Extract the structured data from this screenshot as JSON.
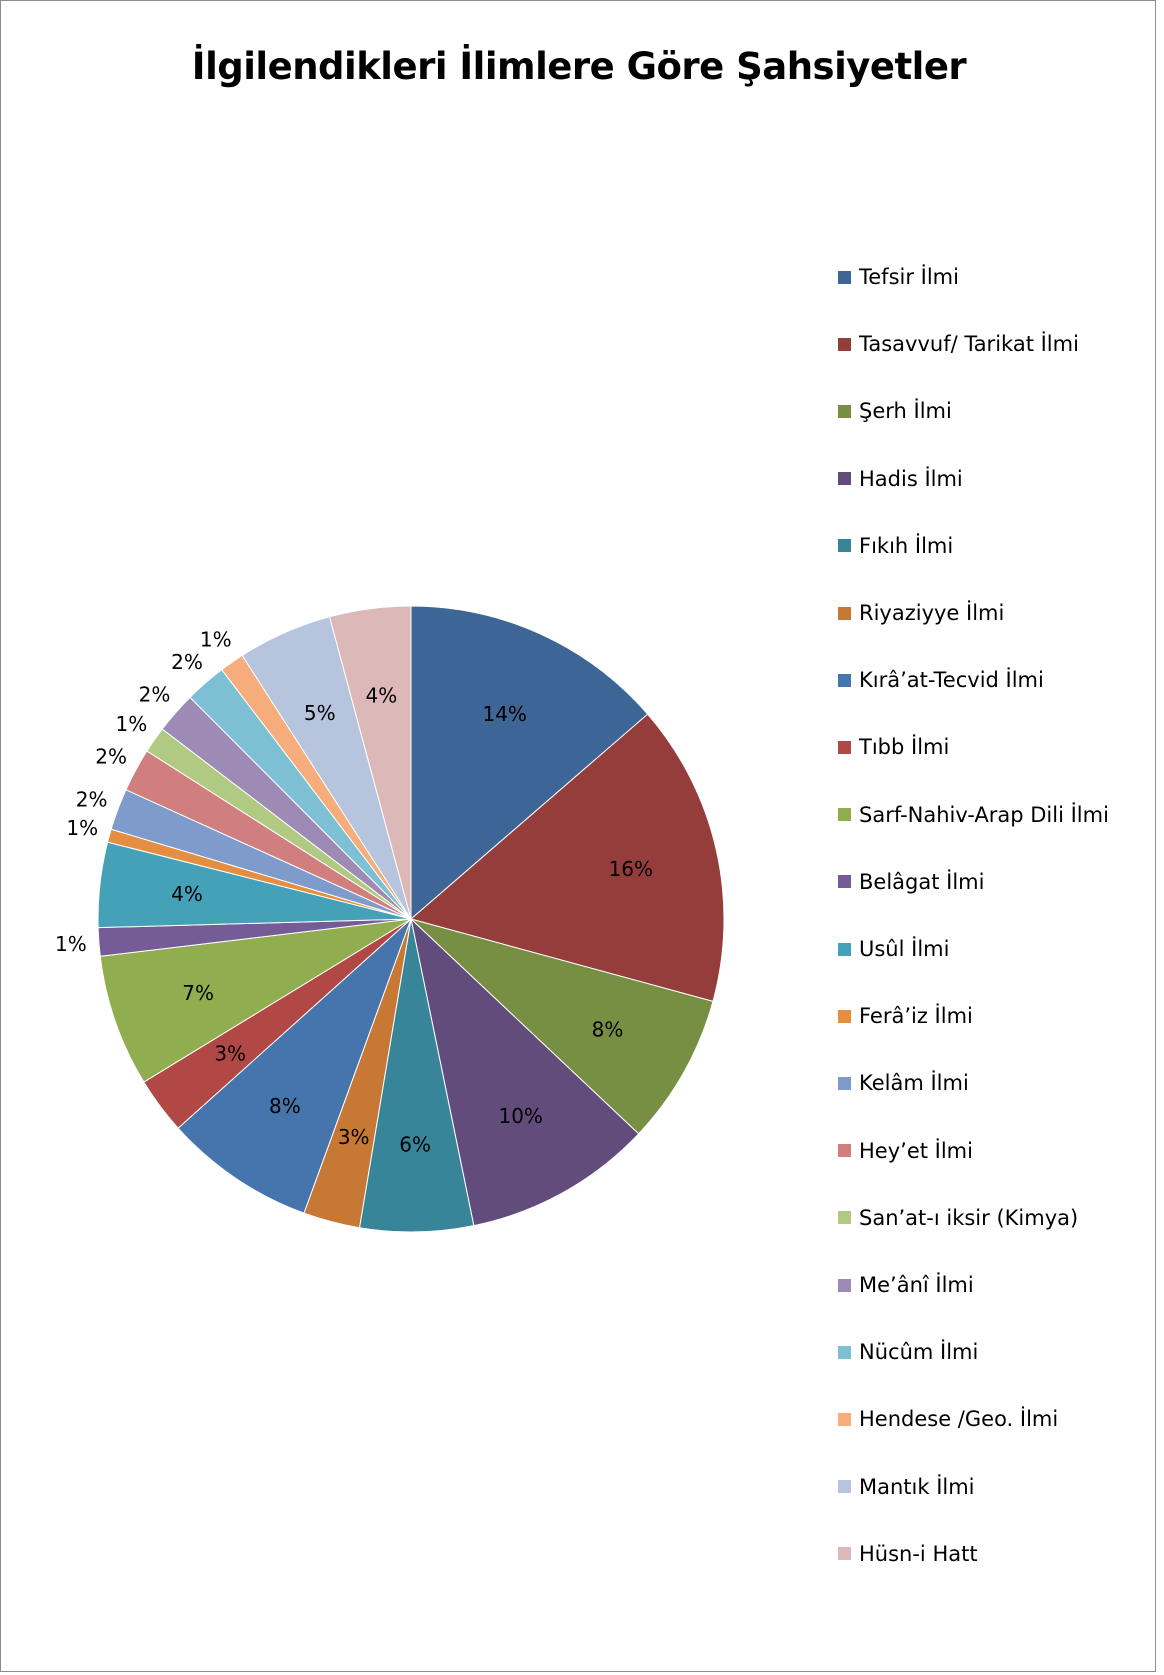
{
  "chart_data": {
    "type": "pie",
    "title": "İlgilendikleri İlimlere Göre Şahsiyetler",
    "legend_position": "right",
    "slices": [
      {
        "label": "Tefsir İlmi",
        "value": 14,
        "display": "14%",
        "color": "#3D6596"
      },
      {
        "label": "Tasavvuf/ Tarikat İlmi",
        "value": 16,
        "display": "16%",
        "color": "#953D3B"
      },
      {
        "label": "Şerh İlmi",
        "value": 8,
        "display": "8%",
        "color": "#778F43"
      },
      {
        "label": "Hadis İlmi",
        "value": 10,
        "display": "10%",
        "color": "#624C7C"
      },
      {
        "label": "Fıkıh İlmi",
        "value": 6,
        "display": "6%",
        "color": "#388599"
      },
      {
        "label": "Riyaziyye İlmi",
        "value": 3,
        "display": "3%",
        "color": "#C67834"
      },
      {
        "label": "Kırâ’at-Tecvid İlmi",
        "value": 8,
        "display": "8%",
        "color": "#4674AD"
      },
      {
        "label": "Tıbb İlmi",
        "value": 3,
        "display": "3%",
        "color": "#B24846"
      },
      {
        "label": "Sarf-Nahiv-Arap Dili İlmi",
        "value": 7,
        "display": "7%",
        "color": "#90AE50"
      },
      {
        "label": "Belâgat İlmi",
        "value": 1.5,
        "display": "1%",
        "color": "#765C97"
      },
      {
        "label": "Usûl İlmi",
        "value": 4.5,
        "display": "4%",
        "color": "#45A1B8"
      },
      {
        "label": "Ferâ’iz İlmi",
        "value": 0.7,
        "display": "1%",
        "color": "#E58E42"
      },
      {
        "label": "Kelâm İlmi",
        "value": 2.2,
        "display": "2%",
        "color": "#7F9BCB"
      },
      {
        "label": "Hey’et İlmi",
        "value": 2.3,
        "display": "2%",
        "color": "#D07F7E"
      },
      {
        "label": "San’at-ı iksir (Kimya)",
        "value": 1.4,
        "display": "1%",
        "color": "#B1CA82"
      },
      {
        "label": "Me’ânî İlmi",
        "value": 2.2,
        "display": "2%",
        "color": "#9D8BB6"
      },
      {
        "label": "Nücûm İlmi",
        "value": 2.2,
        "display": "2%",
        "color": "#7DBFD3"
      },
      {
        "label": "Hendese /Geo. İlmi",
        "value": 1.3,
        "display": "1%",
        "color": "#F6AD7B"
      },
      {
        "label": "Mantık İlmi",
        "value": 5,
        "display": "5%",
        "color": "#B6C4DE"
      },
      {
        "label": "Hüsn-i Hatt",
        "value": 4.3,
        "display": "4%",
        "color": "#DDB8B8"
      }
    ]
  }
}
